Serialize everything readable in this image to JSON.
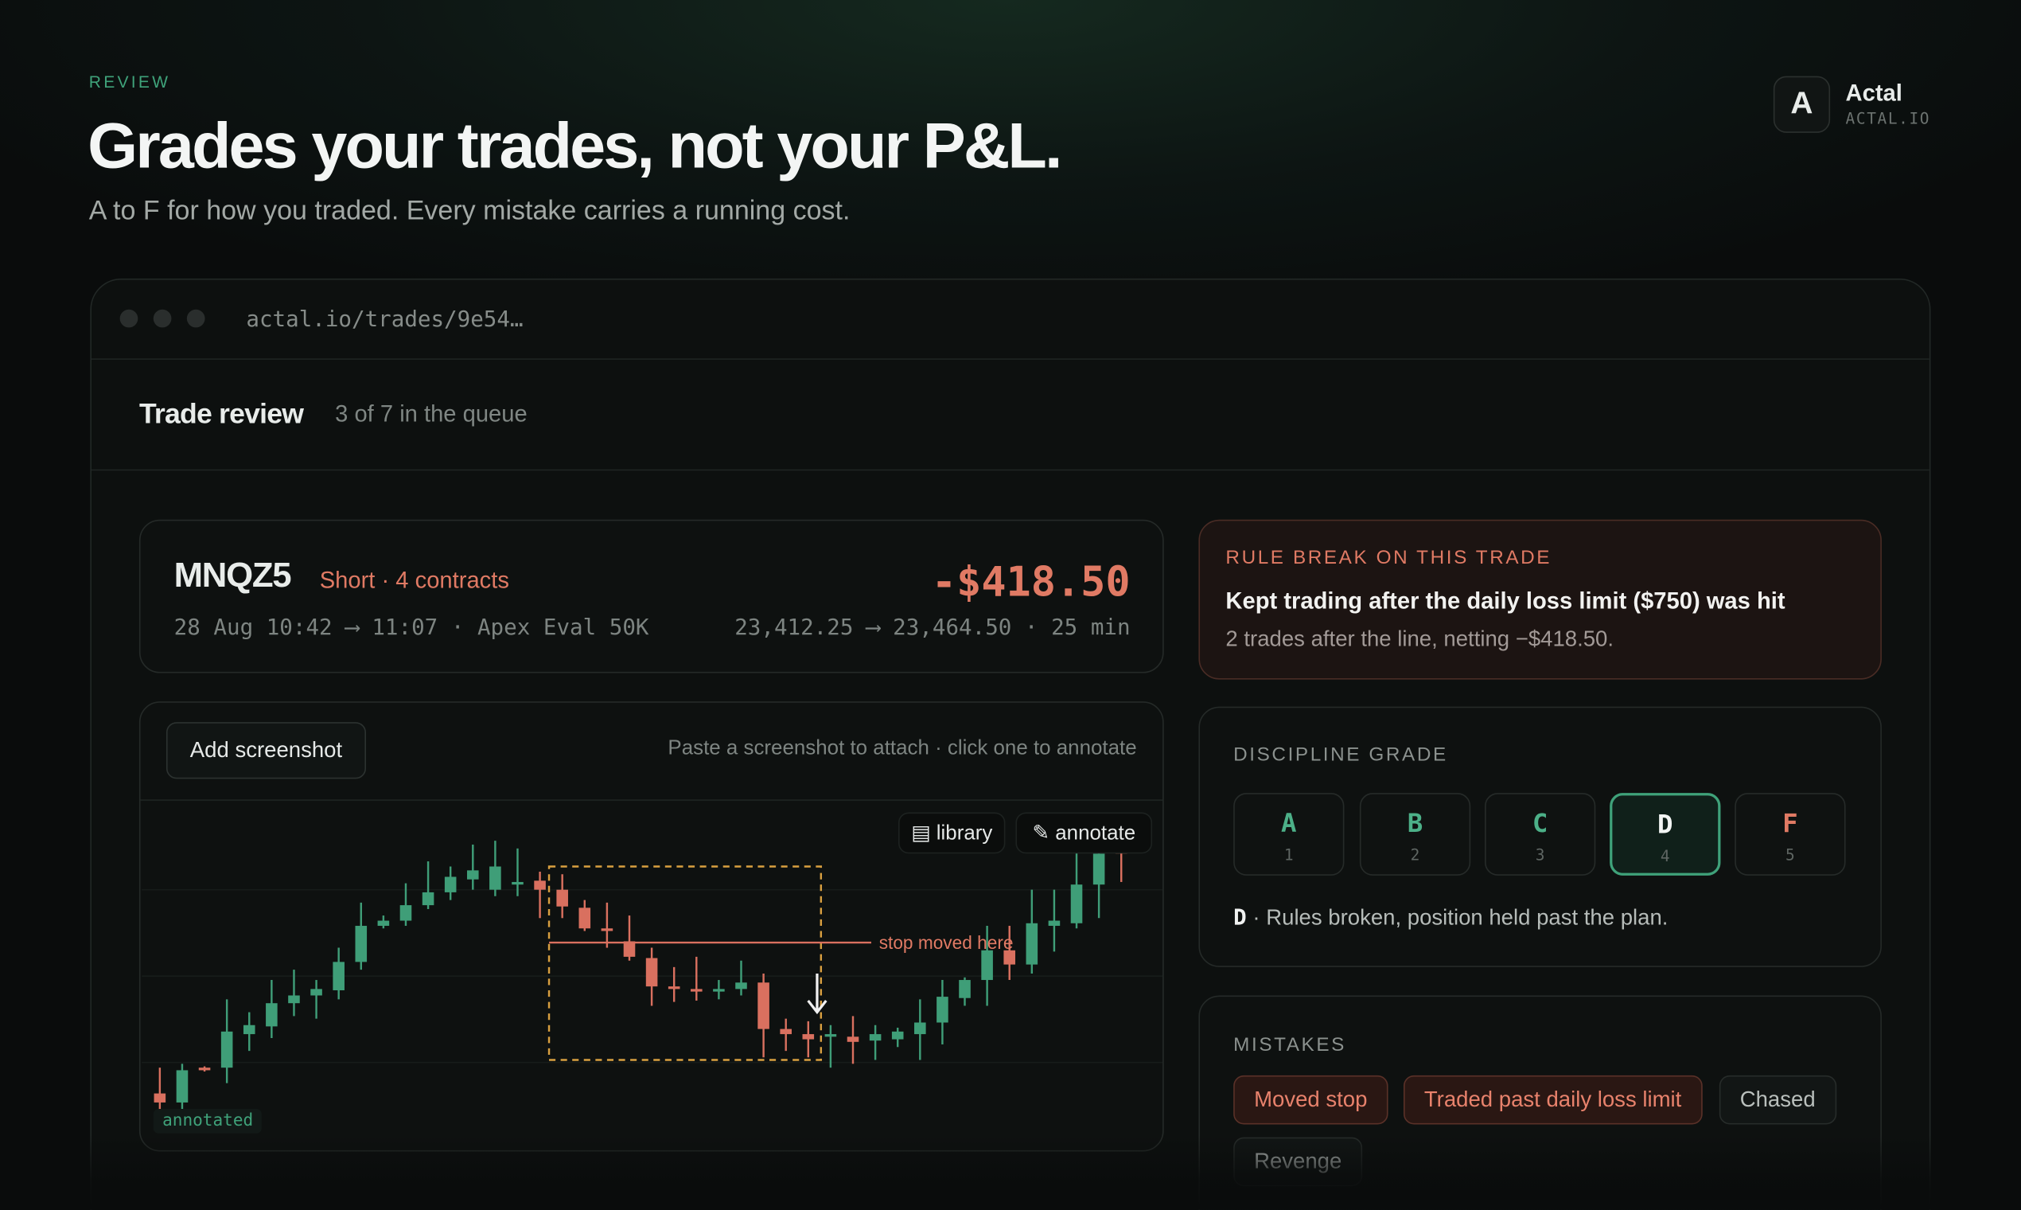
{
  "header": {
    "eyebrow": "REVIEW",
    "title": "Grades your trades, not your P&L.",
    "subtitle": "A to F for how you traded. Every mistake carries a running cost."
  },
  "brand": {
    "mark": "A",
    "name": "Actal",
    "domain": "ACTAL.IO"
  },
  "browser": {
    "url": "actal.io/trades/9e54…"
  },
  "page": {
    "title": "Trade review",
    "queue": "3 of 7 in the queue"
  },
  "trade": {
    "symbol": "MNQZ5",
    "side": "Short · 4 contracts",
    "pnl": "-$418.50",
    "times": "28 Aug 10:42 ⟶ 11:07 · Apex Eval 50K",
    "prices": "23,412.25 ⟶ 23,464.50 · 25 min"
  },
  "chart_panel": {
    "button": "Add screenshot",
    "hint": "Paste a screenshot to attach · click one to annotate",
    "tools": [
      "▤ library",
      "✎ annotate"
    ],
    "badge": "annotated",
    "annotation": "stop moved here"
  },
  "chart_data": {
    "type": "candlestick",
    "up_color": "#3f9e78",
    "down_color": "#d9705f",
    "open": [
      12,
      5,
      32,
      32,
      58,
      64,
      82,
      88,
      92,
      114,
      142,
      146,
      158,
      168,
      178,
      170,
      174,
      177,
      170,
      156,
      140,
      130,
      117,
      95,
      93,
      91,
      93,
      98,
      62,
      58,
      56,
      56,
      53,
      54,
      58,
      67,
      86,
      100,
      123,
      112,
      142,
      144,
      174,
      200
    ],
    "high": [
      32,
      35,
      33,
      85,
      75,
      100,
      108,
      100,
      125,
      160,
      150,
      175,
      192,
      188,
      205,
      208,
      202,
      184,
      182,
      162,
      160,
      150,
      125,
      110,
      118,
      100,
      115,
      105,
      70,
      68,
      65,
      72,
      65,
      63,
      85,
      100,
      102,
      142,
      142,
      170,
      170,
      200,
      202,
      205
    ],
    "low": [
      0,
      -2,
      29,
      20,
      45,
      55,
      72,
      70,
      85,
      108,
      140,
      142,
      155,
      162,
      170,
      165,
      165,
      148,
      148,
      138,
      125,
      115,
      80,
      83,
      84,
      85,
      88,
      40,
      45,
      40,
      32,
      35,
      38,
      48,
      38,
      50,
      80,
      80,
      100,
      105,
      122,
      140,
      148,
      176
    ],
    "close": [
      5,
      30,
      30,
      60,
      65,
      82,
      88,
      93,
      114,
      142,
      146,
      158,
      168,
      180,
      185,
      188,
      176,
      170,
      157,
      140,
      138,
      118,
      95,
      93,
      91,
      93,
      98,
      62,
      58,
      54,
      58,
      52,
      58,
      60,
      67,
      87,
      100,
      123,
      112,
      144,
      146,
      174,
      198,
      198
    ]
  },
  "rule_break": {
    "label": "RULE BREAK ON THIS TRADE",
    "headline": "Kept trading after the daily loss limit ($750) was hit",
    "detail": "2 trades after the line, netting −$418.50."
  },
  "discipline": {
    "label": "DISCIPLINE GRADE",
    "selected": "D",
    "options": [
      {
        "letter": "A",
        "key": "1",
        "tone": "good"
      },
      {
        "letter": "B",
        "key": "2",
        "tone": "good"
      },
      {
        "letter": "C",
        "key": "3",
        "tone": "good"
      },
      {
        "letter": "D",
        "key": "4",
        "tone": "good"
      },
      {
        "letter": "F",
        "key": "5",
        "tone": "bad"
      }
    ],
    "verdict_grade": "D",
    "verdict": "· Rules broken, position held past the plan."
  },
  "mistakes": {
    "label": "MISTAKES",
    "items": [
      {
        "label": "Moved stop",
        "flagged": true
      },
      {
        "label": "Traded past daily loss limit",
        "flagged": true
      },
      {
        "label": "Chased",
        "flagged": false
      },
      {
        "label": "Revenge",
        "flagged": false
      }
    ]
  }
}
